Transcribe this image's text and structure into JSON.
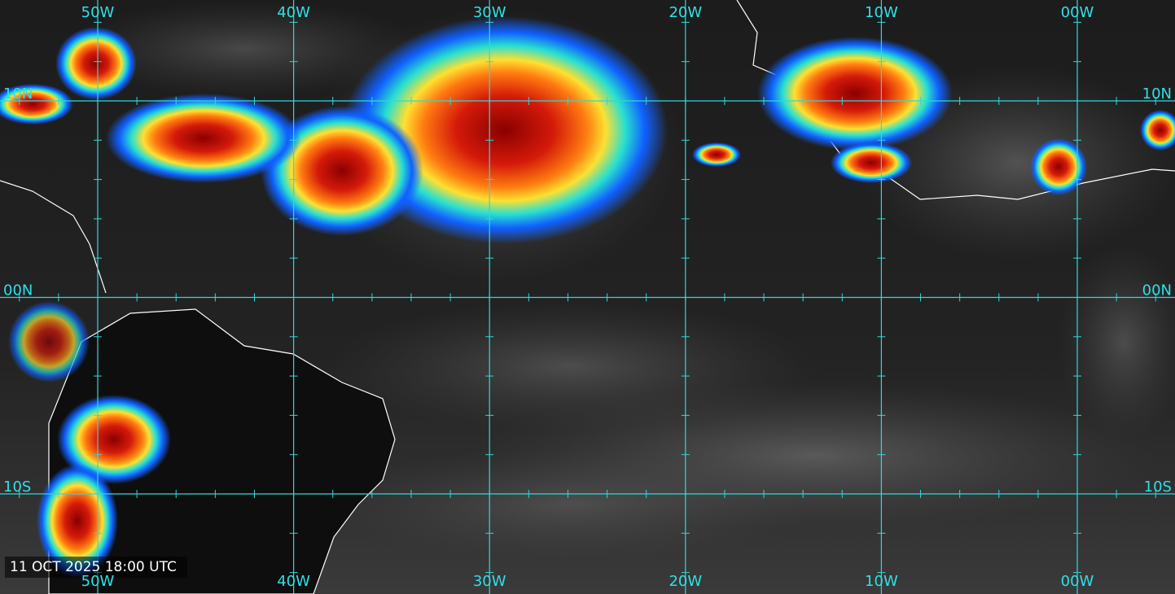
{
  "grid": {
    "longitudes": [
      "50W",
      "40W",
      "30W",
      "20W",
      "10W",
      "00W"
    ],
    "latitudes": [
      "10N",
      "00N",
      "10S"
    ]
  },
  "timestamp": "11 OCT 2025 18:00 UTC"
}
